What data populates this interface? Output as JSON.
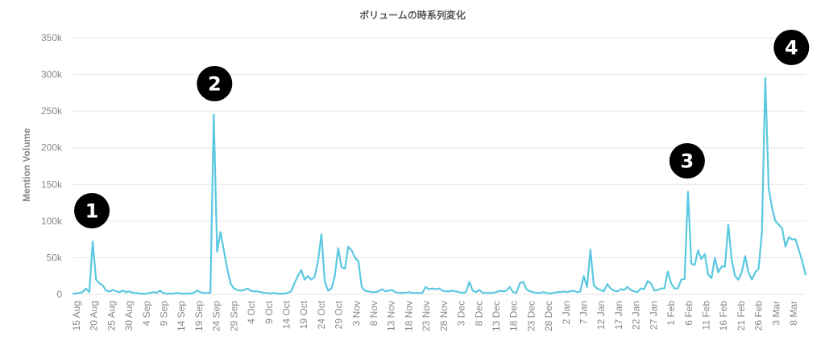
{
  "chart_data": {
    "type": "line",
    "title": "ボリュームの時系列変化",
    "xlabel": "",
    "ylabel": "Mention Volume",
    "ylim": [
      0,
      350000
    ],
    "yticks": [
      0,
      50000,
      100000,
      150000,
      200000,
      250000,
      300000,
      350000
    ],
    "ytick_labels": [
      "0",
      "50k",
      "100k",
      "150k",
      "200k",
      "250k",
      "300k",
      "350k"
    ],
    "grid": true,
    "line_color": "#5bc8e0",
    "xtick_labels": [
      "15 Aug",
      "20 Aug",
      "25 Aug",
      "30 Aug",
      "4 Sep",
      "9 Sep",
      "14 Sep",
      "19 Sep",
      "24 Sep",
      "29 Sep",
      "4 Oct",
      "9 Oct",
      "14 Oct",
      "19 Oct",
      "24 Oct",
      "29 Oct",
      "3 Nov",
      "8 Nov",
      "13 Nov",
      "18 Nov",
      "23 Nov",
      "28 Nov",
      "3 Dec",
      "8 Dec",
      "13 Dec",
      "18 Dec",
      "23 Dec",
      "28 Dec",
      "2 Jan",
      "7 Jan",
      "12 Jan",
      "17 Jan",
      "22 Jan",
      "27 Jan",
      "1 Feb",
      "6 Feb",
      "11 Feb",
      "16 Feb",
      "21 Feb",
      "26 Feb",
      "3 Mar",
      "8 Mar"
    ],
    "series": [
      {
        "values": [
          1000,
          1000,
          2000,
          3000,
          8000,
          3000,
          72000,
          20000,
          15000,
          12000,
          5000,
          4000,
          6000,
          4000,
          3000,
          5000,
          3000,
          4000,
          2000,
          2000,
          1000,
          1000,
          1000,
          2000,
          3000,
          2000,
          5000,
          2000,
          1000,
          1000,
          1000,
          2000,
          1000,
          1000,
          1000,
          1000,
          2000,
          5000,
          3000,
          2000,
          2000,
          2000,
          245000,
          58000,
          85000,
          60000,
          35000,
          15000,
          8000,
          6000,
          5000,
          6000,
          8000,
          5000,
          4000,
          4000,
          3000,
          2000,
          2000,
          1000,
          2000,
          1000,
          1000,
          1000,
          2000,
          4000,
          15000,
          25000,
          33000,
          20000,
          25000,
          20000,
          24000,
          45000,
          82000,
          18000,
          5000,
          8000,
          25000,
          63000,
          37000,
          35000,
          65000,
          60000,
          50000,
          45000,
          10000,
          5000,
          4000,
          3000,
          3000,
          4000,
          7000,
          4000,
          5000,
          6000,
          3000,
          2000,
          2000,
          2000,
          3000,
          2000,
          2000,
          2000,
          2000,
          10000,
          7000,
          8000,
          7000,
          8000,
          5000,
          4000,
          4000,
          5000,
          4000,
          3000,
          2000,
          3000,
          17000,
          5000,
          3000,
          6000,
          2000,
          2000,
          2000,
          2000,
          3000,
          5000,
          4000,
          5000,
          10000,
          3000,
          2000,
          15000,
          17000,
          7000,
          4000,
          3000,
          2000,
          2000,
          3000,
          2000,
          1000,
          2000,
          3000,
          3000,
          4000,
          3000,
          4000,
          5000,
          3000,
          4000,
          25000,
          10000,
          61000,
          12000,
          8000,
          6000,
          4000,
          14000,
          8000,
          5000,
          4000,
          7000,
          6000,
          10000,
          6000,
          4000,
          3000,
          8000,
          7000,
          18000,
          15000,
          5000,
          6000,
          8000,
          8000,
          31000,
          15000,
          8000,
          8000,
          20000,
          21000,
          140000,
          42000,
          40000,
          60000,
          48000,
          55000,
          27000,
          22000,
          50000,
          30000,
          38000,
          38000,
          95000,
          47000,
          25000,
          20000,
          30000,
          52000,
          30000,
          20000,
          30000,
          35000,
          85000,
          295000,
          145000,
          118000,
          100000,
          95000,
          90000,
          65000,
          78000,
          75000,
          75000,
          60000,
          45000,
          26000
        ]
      }
    ],
    "annotations": [
      {
        "label": "1",
        "glyph": "❶",
        "x_index": 6
      },
      {
        "label": "2",
        "glyph": "❷",
        "x_index": 42
      },
      {
        "label": "3",
        "glyph": "❸",
        "x_index": 183
      },
      {
        "label": "4",
        "glyph": "❹",
        "x_index": 214
      }
    ]
  }
}
